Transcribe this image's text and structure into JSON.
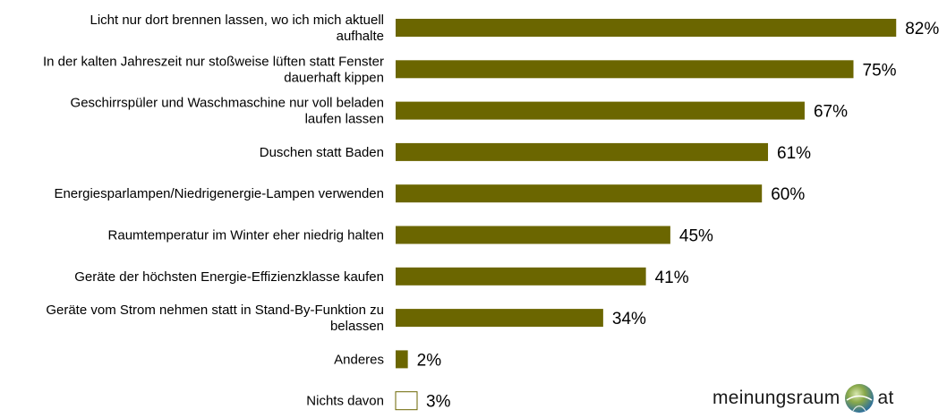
{
  "chart_data": {
    "type": "bar",
    "orientation": "horizontal",
    "categories": [
      [
        "Licht nur dort brennen lassen, wo ich mich aktuell",
        "aufhalte"
      ],
      [
        "In der kalten Jahreszeit nur stoßweise lüften statt Fenster",
        "dauerhaft kippen"
      ],
      [
        "Geschirrspüler und Waschmaschine nur voll beladen",
        "laufen lassen"
      ],
      [
        "Duschen statt Baden"
      ],
      [
        "Energiesparlampen/Niedrigenergie-Lampen verwenden"
      ],
      [
        "Raumtemperatur im Winter eher niedrig halten"
      ],
      [
        "Geräte der höchsten Energie-Effizienzklasse kaufen"
      ],
      [
        "Geräte vom Strom nehmen statt in Stand-By-Funktion zu",
        "belassen"
      ],
      [
        "Anderes"
      ],
      [
        "Nichts davon"
      ]
    ],
    "values": [
      82,
      75,
      67,
      61,
      60,
      45,
      41,
      34,
      2,
      3
    ],
    "value_labels": [
      "82%",
      "75%",
      "67%",
      "61%",
      "60%",
      "45%",
      "41%",
      "34%",
      "2%",
      "3%"
    ],
    "bar_color": "#6b6600",
    "hollow_bar_index": 9,
    "xlim": [
      0,
      100
    ],
    "grid": false,
    "legend": "none"
  },
  "logo": {
    "word": "meinungsraum",
    "suffix": "at"
  }
}
